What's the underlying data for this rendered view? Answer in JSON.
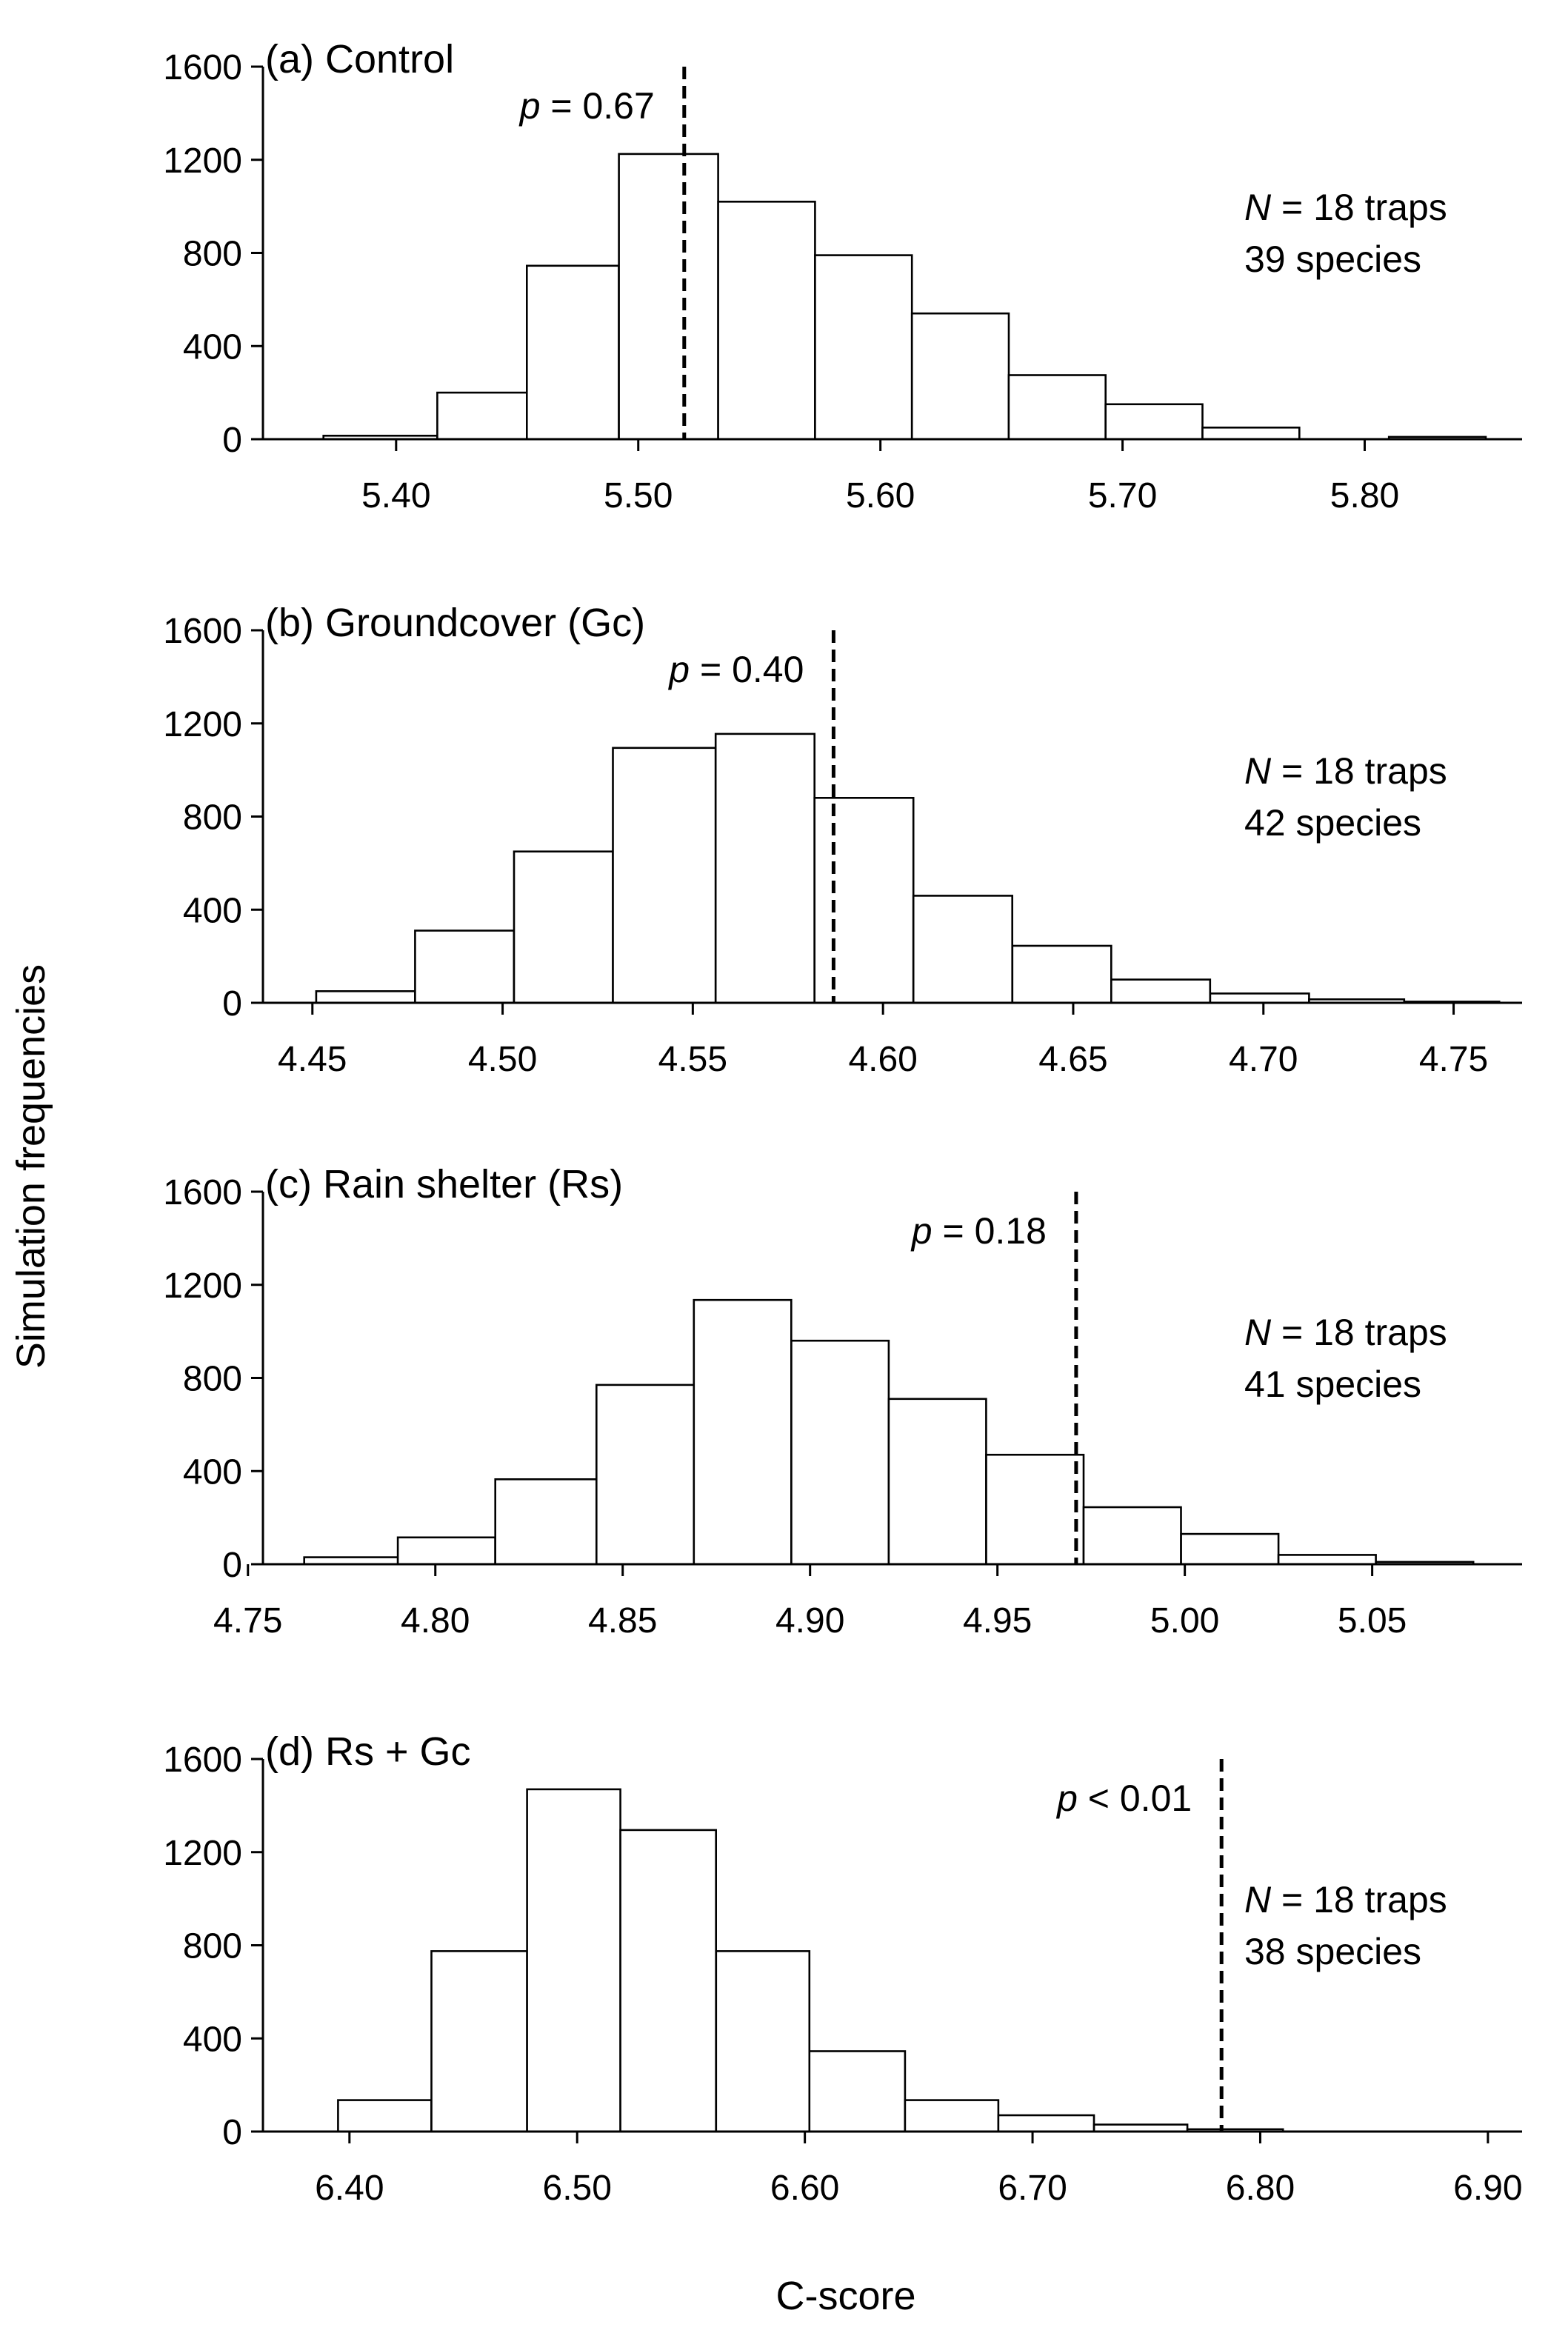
{
  "figure": {
    "y_axis_label": "Simulation frequencies",
    "x_axis_label": "C-score"
  },
  "chart_data": [
    {
      "type": "bar",
      "title": "(a) Control",
      "xlabel": "C-score",
      "ylabel": "Simulation frequencies",
      "ylim": [
        0,
        1600
      ],
      "yticks": [
        0,
        400,
        800,
        1200,
        1600
      ],
      "ytick_labels": [
        "0",
        "400",
        "800",
        "1200",
        "1600"
      ],
      "xlim": [
        5.345,
        5.865
      ],
      "xticks": [
        5.4,
        5.5,
        5.6,
        5.7,
        5.8
      ],
      "xtick_labels": [
        "5.40",
        "5.50",
        "5.60",
        "5.70",
        "5.80"
      ],
      "bin_edges": [
        5.37,
        5.417,
        5.454,
        5.492,
        5.533,
        5.573,
        5.613,
        5.653,
        5.693,
        5.733,
        5.773,
        5.81,
        5.85
      ],
      "values": [
        15,
        200,
        745,
        1225,
        1020,
        790,
        540,
        275,
        150,
        50,
        0,
        10
      ],
      "observed": 5.519,
      "p_label": "p",
      "p_text": " = 0.67",
      "n_label": "N",
      "n_text": " = 18 traps",
      "species_text": "39 species",
      "grid": false
    },
    {
      "type": "bar",
      "title": "(b) Groundcover (Gc)",
      "xlabel": "C-score",
      "ylabel": "Simulation frequencies",
      "ylim": [
        0,
        1600
      ],
      "yticks": [
        0,
        400,
        800,
        1200,
        1600
      ],
      "ytick_labels": [
        "0",
        "400",
        "800",
        "1200",
        "1600"
      ],
      "xlim": [
        4.437,
        4.768
      ],
      "xticks": [
        4.45,
        4.5,
        4.55,
        4.6,
        4.65,
        4.7,
        4.75
      ],
      "xtick_labels": [
        "4.45",
        "4.50",
        "4.55",
        "4.60",
        "4.65",
        "4.70",
        "4.75"
      ],
      "bin_edges": [
        4.451,
        4.477,
        4.503,
        4.529,
        4.556,
        4.582,
        4.608,
        4.634,
        4.66,
        4.686,
        4.712,
        4.737,
        4.762
      ],
      "values": [
        50,
        310,
        650,
        1095,
        1155,
        880,
        460,
        245,
        100,
        40,
        15,
        5
      ],
      "observed": 4.587,
      "p_label": "p",
      "p_text": " = 0.40",
      "n_label": "N",
      "n_text": " = 18 traps",
      "species_text": "42 species",
      "grid": false
    },
    {
      "type": "bar",
      "title": "(c) Rain shelter (Rs)",
      "xlabel": "C-score",
      "ylabel": "Simulation frequencies",
      "ylim": [
        0,
        1600
      ],
      "yticks": [
        0,
        400,
        800,
        1200,
        1600
      ],
      "ytick_labels": [
        "0",
        "400",
        "800",
        "1200",
        "1600"
      ],
      "xlim": [
        4.754,
        5.09
      ],
      "xticks": [
        4.75,
        4.8,
        4.85,
        4.9,
        4.95,
        5.0,
        5.05
      ],
      "xtick_labels": [
        "4.75",
        "4.80",
        "4.85",
        "4.90",
        "4.95",
        "5.00",
        "5.05"
      ],
      "bin_edges": [
        4.765,
        4.79,
        4.816,
        4.843,
        4.869,
        4.895,
        4.921,
        4.947,
        4.973,
        4.999,
        5.025,
        5.051,
        5.077
      ],
      "values": [
        30,
        115,
        365,
        770,
        1135,
        960,
        710,
        470,
        245,
        130,
        40,
        10
      ],
      "observed": 4.971,
      "p_label": "p",
      "p_text": " = 0.18",
      "n_label": "N",
      "n_text": " = 18 traps",
      "species_text": "41 species",
      "grid": false
    },
    {
      "type": "bar",
      "title": "(d) Rs + Gc",
      "xlabel": "C-score",
      "ylabel": "Simulation frequencies",
      "ylim": [
        0,
        1600
      ],
      "yticks": [
        0,
        400,
        800,
        1200,
        1600
      ],
      "ytick_labels": [
        "0",
        "400",
        "800",
        "1200",
        "1600"
      ],
      "xlim": [
        6.362,
        6.915
      ],
      "xticks": [
        6.4,
        6.5,
        6.6,
        6.7,
        6.8,
        6.9
      ],
      "xtick_labels": [
        "6.40",
        "6.50",
        "6.60",
        "6.70",
        "6.80",
        "6.90"
      ],
      "bin_edges": [
        6.395,
        6.436,
        6.478,
        6.519,
        6.561,
        6.602,
        6.644,
        6.685,
        6.727,
        6.768,
        6.81
      ],
      "values": [
        135,
        775,
        1470,
        1295,
        775,
        345,
        135,
        70,
        30,
        10
      ],
      "observed": 6.783,
      "p_label": "p",
      "p_text": " < 0.01",
      "n_label": "N",
      "n_text": " = 18 traps",
      "species_text": "38 species",
      "grid": false
    }
  ]
}
